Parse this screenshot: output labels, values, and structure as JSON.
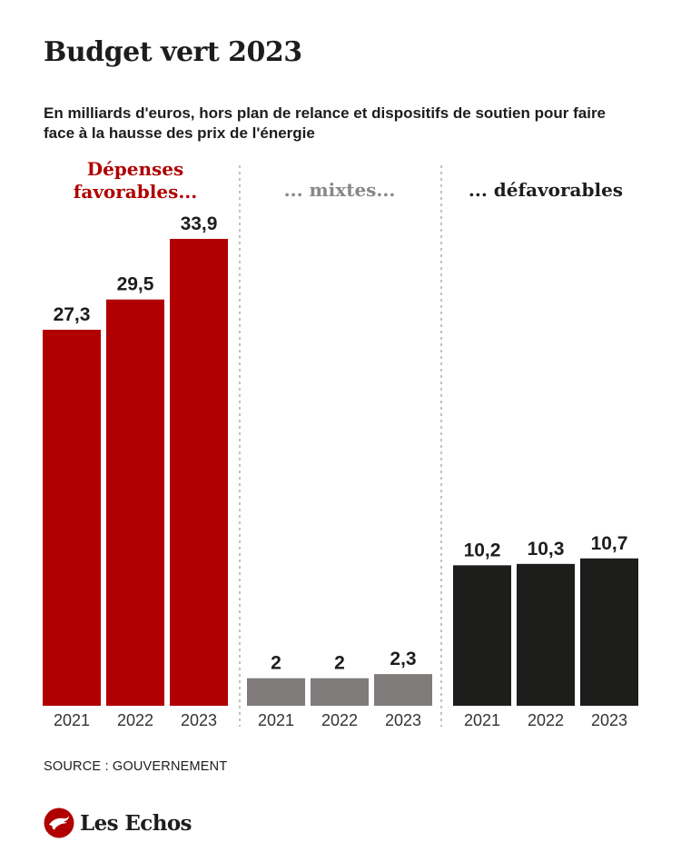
{
  "title": "Budget vert 2023",
  "subtitle": "En milliards d'euros, hors plan de relance et dispositifs de soutien pour faire face à la hausse des prix de l'énergie",
  "source": "SOURCE : GOUVERNEMENT",
  "brand": "Les Echos",
  "colors": {
    "favorable": "#b00000",
    "mixte": "#7f7c7b",
    "defavorable": "#1d1d1b",
    "mixte_label": "#8a8786",
    "divider": "#9a9a9a"
  },
  "chart_data": {
    "type": "bar",
    "categories": [
      "2021",
      "2022",
      "2023"
    ],
    "ylim": [
      0,
      33.9
    ],
    "series": [
      {
        "name": "Dépenses favorables...",
        "label_lines": [
          "Dépenses",
          "favorables..."
        ],
        "values": [
          27.3,
          29.5,
          33.9
        ],
        "value_labels": [
          "27,3",
          "29,5",
          "33,9"
        ]
      },
      {
        "name": "... mixtes...",
        "label_lines": [
          "... mixtes..."
        ],
        "values": [
          2,
          2,
          2.3
        ],
        "value_labels": [
          "2",
          "2",
          "2,3"
        ]
      },
      {
        "name": "... défavorables",
        "label_lines": [
          "... défavorables"
        ],
        "values": [
          10.2,
          10.3,
          10.7
        ],
        "value_labels": [
          "10,2",
          "10,3",
          "10,7"
        ]
      }
    ]
  }
}
